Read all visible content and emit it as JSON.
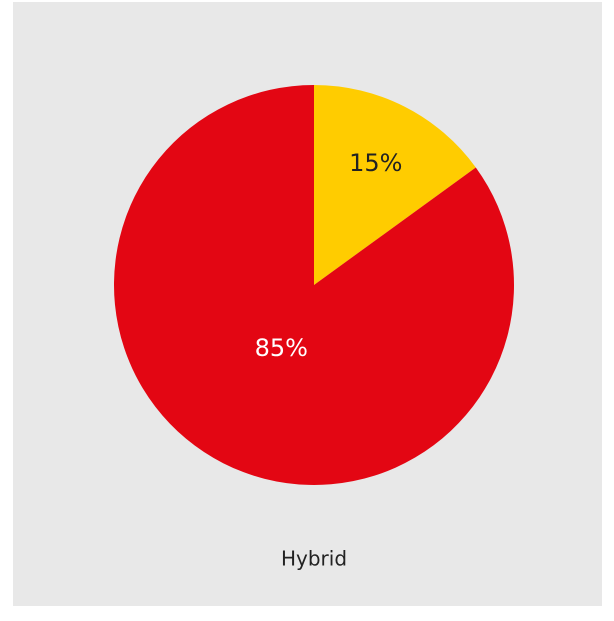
{
  "chart_data": {
    "type": "pie",
    "title": "Hybrid",
    "values": [
      15,
      85
    ],
    "value_labels": [
      "15%",
      "85%"
    ],
    "colors": [
      "#ffcc00",
      "#e30613"
    ],
    "label_colors": [
      "#222222",
      "#ffffff"
    ],
    "start_angle": 0,
    "direction": "clockwise"
  }
}
